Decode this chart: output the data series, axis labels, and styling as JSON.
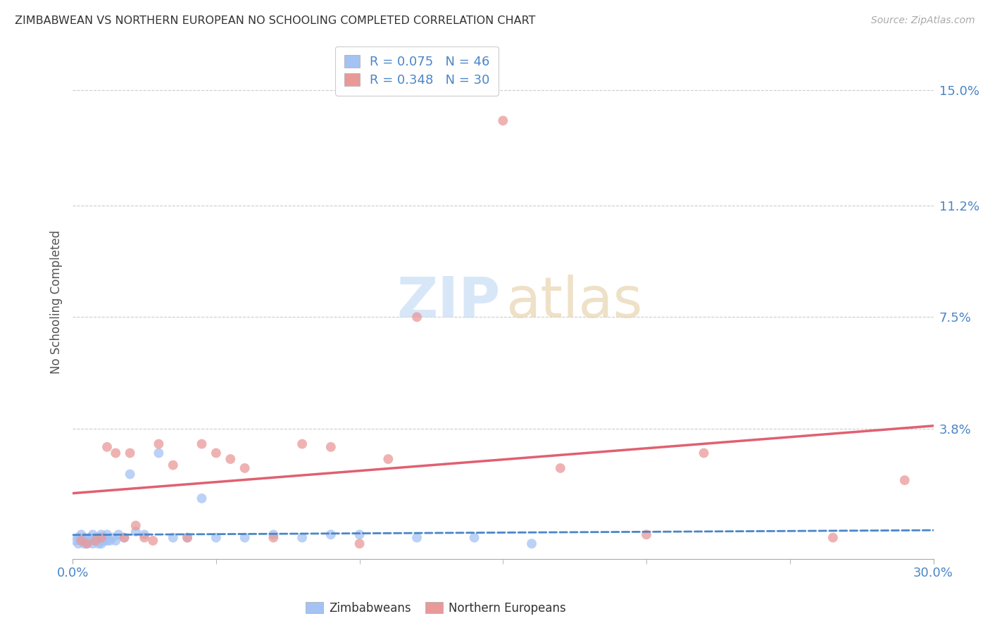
{
  "title": "ZIMBABWEAN VS NORTHERN EUROPEAN NO SCHOOLING COMPLETED CORRELATION CHART",
  "source": "Source: ZipAtlas.com",
  "ylabel": "No Schooling Completed",
  "ytick_labels": [
    "15.0%",
    "11.2%",
    "7.5%",
    "3.8%"
  ],
  "ytick_values": [
    0.15,
    0.112,
    0.075,
    0.038
  ],
  "xlim": [
    0.0,
    0.3
  ],
  "ylim": [
    -0.005,
    0.165
  ],
  "legend1_label": "Zimbabweans",
  "legend2_label": "Northern Europeans",
  "R_zim": 0.075,
  "N_zim": 46,
  "R_nor": 0.348,
  "N_nor": 30,
  "zim_color": "#a4c2f4",
  "nor_color": "#ea9999",
  "zim_line_color": "#4a86c8",
  "nor_line_color": "#e06070",
  "background_color": "#ffffff",
  "zim_x": [
    0.001,
    0.002,
    0.002,
    0.003,
    0.003,
    0.004,
    0.004,
    0.005,
    0.005,
    0.006,
    0.006,
    0.007,
    0.007,
    0.007,
    0.008,
    0.008,
    0.009,
    0.009,
    0.01,
    0.01,
    0.01,
    0.011,
    0.011,
    0.012,
    0.012,
    0.013,
    0.014,
    0.015,
    0.016,
    0.018,
    0.02,
    0.022,
    0.025,
    0.03,
    0.035,
    0.04,
    0.045,
    0.05,
    0.06,
    0.07,
    0.08,
    0.09,
    0.1,
    0.12,
    0.14,
    0.16
  ],
  "zim_y": [
    0.001,
    0.0,
    0.002,
    0.001,
    0.003,
    0.0,
    0.002,
    0.001,
    0.0,
    0.002,
    0.001,
    0.003,
    0.001,
    0.0,
    0.002,
    0.001,
    0.002,
    0.0,
    0.001,
    0.003,
    0.0,
    0.002,
    0.001,
    0.001,
    0.003,
    0.001,
    0.002,
    0.001,
    0.003,
    0.002,
    0.023,
    0.004,
    0.003,
    0.03,
    0.002,
    0.002,
    0.015,
    0.002,
    0.002,
    0.003,
    0.002,
    0.003,
    0.003,
    0.002,
    0.002,
    0.0
  ],
  "nor_x": [
    0.003,
    0.005,
    0.008,
    0.01,
    0.012,
    0.015,
    0.018,
    0.02,
    0.022,
    0.025,
    0.028,
    0.03,
    0.035,
    0.04,
    0.045,
    0.05,
    0.055,
    0.06,
    0.07,
    0.08,
    0.09,
    0.1,
    0.11,
    0.12,
    0.15,
    0.17,
    0.2,
    0.22,
    0.265,
    0.29
  ],
  "nor_y": [
    0.001,
    0.0,
    0.001,
    0.002,
    0.032,
    0.03,
    0.002,
    0.03,
    0.006,
    0.002,
    0.001,
    0.033,
    0.026,
    0.002,
    0.033,
    0.03,
    0.028,
    0.025,
    0.002,
    0.033,
    0.032,
    0.0,
    0.028,
    0.075,
    0.14,
    0.025,
    0.003,
    0.03,
    0.002,
    0.021
  ]
}
